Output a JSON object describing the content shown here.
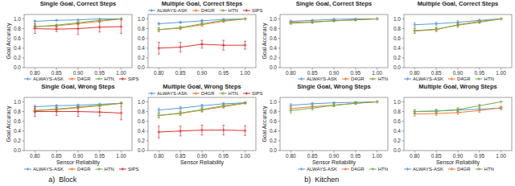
{
  "chart_data": [
    {
      "type": "line",
      "title": "Single Goal, Correct Steps",
      "ylabel": "Goal Accuracy",
      "x": [
        0.8,
        0.85,
        0.9,
        0.95,
        1.0
      ],
      "xlim": [
        0.775,
        1.025
      ],
      "xticks": [
        {
          "value": 0.8,
          "label": "0.80"
        },
        0.85,
        {
          "value": 0.9,
          "label": "0.90"
        },
        0.95,
        {
          "value": 1.0,
          "label": "1.00"
        }
      ],
      "ylim": [
        0.0,
        1.09
      ],
      "yticks": [
        {
          "value": 0.0,
          "label": "0.0"
        },
        0.2,
        0.4,
        0.6,
        0.8,
        {
          "value": 1.0,
          "label": "1.0"
        }
      ],
      "grid": false,
      "legend": "lower left",
      "marker": "plus",
      "series": [
        {
          "name": "ALWAYS-ASK",
          "color": "#5b9bd5",
          "values": [
            0.95,
            0.97,
            0.98,
            1.0,
            1.0
          ],
          "errors": [
            0.02,
            0.01,
            0.01,
            0.0,
            0.0
          ]
        },
        {
          "name": "D4GR",
          "color": "#ed7d31",
          "values": [
            0.84,
            0.86,
            0.9,
            0.95,
            1.0
          ],
          "errors": [
            0.03,
            0.02,
            0.02,
            0.01,
            0.0
          ]
        },
        {
          "name": "HTN",
          "color": "#70ad47",
          "values": [
            0.84,
            0.87,
            0.92,
            0.97,
            1.0
          ],
          "errors": [
            0.03,
            0.02,
            0.02,
            0.01,
            0.0
          ]
        },
        {
          "name": "SIPS",
          "color": "#e03030",
          "values": [
            0.8,
            0.79,
            0.8,
            0.83,
            0.84
          ],
          "errors": [
            0.1,
            0.05,
            0.12,
            0.1,
            0.14
          ]
        }
      ]
    },
    {
      "type": "line",
      "title": "Multiple Goal, Correct Steps",
      "x": [
        0.8,
        0.85,
        0.9,
        0.95,
        1.0
      ],
      "xlim": [
        0.775,
        1.025
      ],
      "xticks": [
        {
          "value": 0.8,
          "label": "0.80"
        },
        0.85,
        {
          "value": 0.9,
          "label": "0.90"
        },
        0.95,
        {
          "value": 1.0,
          "label": "1.00"
        }
      ],
      "ylim": [
        0.0,
        1.09
      ],
      "yticks": [
        {
          "value": 0.0,
          "label": "0.0"
        },
        0.2,
        0.4,
        0.6,
        0.8,
        {
          "value": 1.0,
          "label": "1.0"
        }
      ],
      "grid": false,
      "legend": "upper left",
      "marker": "plus",
      "series": [
        {
          "name": "ALWAYS-ASK",
          "color": "#5b9bd5",
          "values": [
            0.9,
            0.93,
            0.96,
            0.99,
            1.0
          ],
          "errors": [
            0.02,
            0.02,
            0.02,
            0.01,
            0.0
          ]
        },
        {
          "name": "D4GR",
          "color": "#ed7d31",
          "values": [
            0.78,
            0.81,
            0.88,
            0.95,
            1.0
          ],
          "errors": [
            0.04,
            0.03,
            0.03,
            0.02,
            0.0
          ]
        },
        {
          "name": "HTN",
          "color": "#70ad47",
          "values": [
            0.78,
            0.82,
            0.9,
            0.97,
            1.0
          ],
          "errors": [
            0.04,
            0.03,
            0.03,
            0.01,
            0.0
          ]
        },
        {
          "name": "SIPS",
          "color": "#e03030",
          "values": [
            0.4,
            0.42,
            0.48,
            0.46,
            0.46
          ],
          "errors": [
            0.12,
            0.1,
            0.08,
            0.1,
            0.08
          ]
        }
      ]
    },
    {
      "type": "line",
      "title": "Single Goal, Correct Steps",
      "ylabel": "Goal Accuracy",
      "x": [
        0.8,
        0.85,
        0.9,
        0.95,
        1.0
      ],
      "xlim": [
        0.775,
        1.025
      ],
      "xticks": [
        {
          "value": 0.8,
          "label": "0.80"
        },
        0.85,
        {
          "value": 0.9,
          "label": "0.90"
        },
        0.95,
        {
          "value": 1.0,
          "label": "1.00"
        }
      ],
      "ylim": [
        0.0,
        1.09
      ],
      "yticks": [
        {
          "value": 0.0,
          "label": "0.0"
        },
        0.2,
        0.4,
        0.6,
        0.8,
        {
          "value": 1.0,
          "label": "1.0"
        }
      ],
      "grid": false,
      "legend": "lower right",
      "marker": "plus",
      "series": [
        {
          "name": "ALWAYS-ASK",
          "color": "#5b9bd5",
          "values": [
            0.95,
            0.97,
            0.99,
            1.0,
            1.0
          ],
          "errors": [
            0.02,
            0.01,
            0.01,
            0.0,
            0.0
          ]
        },
        {
          "name": "D4GR",
          "color": "#ed7d31",
          "values": [
            0.93,
            0.94,
            0.96,
            0.98,
            1.0
          ],
          "errors": [
            0.02,
            0.02,
            0.01,
            0.01,
            0.0
          ]
        },
        {
          "name": "HTN",
          "color": "#70ad47",
          "values": [
            0.91,
            0.93,
            0.96,
            0.98,
            1.0
          ],
          "errors": [
            0.02,
            0.02,
            0.01,
            0.01,
            0.0
          ]
        }
      ]
    },
    {
      "type": "line",
      "title": "Multiple Goal, Correct Steps",
      "x": [
        0.8,
        0.85,
        0.9,
        0.95,
        1.0
      ],
      "xlim": [
        0.775,
        1.025
      ],
      "xticks": [
        {
          "value": 0.8,
          "label": "0.80"
        },
        0.85,
        {
          "value": 0.9,
          "label": "0.90"
        },
        0.95,
        {
          "value": 1.0,
          "label": "1.00"
        }
      ],
      "ylim": [
        0.0,
        1.09
      ],
      "yticks": [
        {
          "value": 0.0,
          "label": "0.0"
        },
        0.2,
        0.4,
        0.6,
        0.8,
        {
          "value": 1.0,
          "label": "1.0"
        }
      ],
      "grid": false,
      "legend": "lower left",
      "marker": "plus",
      "series": [
        {
          "name": "ALWAYS-ASK",
          "color": "#5b9bd5",
          "values": [
            0.88,
            0.9,
            0.93,
            0.97,
            1.0
          ],
          "errors": [
            0.04,
            0.03,
            0.03,
            0.02,
            0.0
          ]
        },
        {
          "name": "D4GR",
          "color": "#ed7d31",
          "values": [
            0.75,
            0.78,
            0.88,
            0.95,
            1.0
          ],
          "errors": [
            0.05,
            0.04,
            0.04,
            0.02,
            0.0
          ]
        },
        {
          "name": "HTN",
          "color": "#70ad47",
          "values": [
            0.76,
            0.79,
            0.87,
            0.93,
            1.0
          ],
          "errors": [
            0.05,
            0.04,
            0.04,
            0.02,
            0.0
          ]
        }
      ]
    },
    {
      "type": "line",
      "title": "Single Goal, Wrong Steps",
      "ylabel": "Goal Accuracy",
      "xlabel": "Sensor Reliability",
      "annotations": [
        "a)",
        "Block"
      ],
      "x": [
        0.8,
        0.85,
        0.9,
        0.95,
        1.0
      ],
      "xlim": [
        0.775,
        1.025
      ],
      "xticks": [
        {
          "value": 0.8,
          "label": "0.80"
        },
        0.85,
        {
          "value": 0.9,
          "label": "0.90"
        },
        0.95,
        {
          "value": 1.0,
          "label": "1.00"
        }
      ],
      "ylim": [
        0.0,
        1.09
      ],
      "yticks": [
        {
          "value": 0.0,
          "label": "0.0"
        },
        0.2,
        0.4,
        0.6,
        0.8,
        {
          "value": 1.0,
          "label": "1.0"
        }
      ],
      "grid": false,
      "legend": "lower left",
      "marker": "plus",
      "series": [
        {
          "name": "ALWAYS-ASK",
          "color": "#5b9bd5",
          "values": [
            0.9,
            0.92,
            0.93,
            0.95,
            0.97
          ],
          "errors": [
            0.03,
            0.02,
            0.02,
            0.01,
            0.01
          ]
        },
        {
          "name": "D4GR",
          "color": "#ed7d31",
          "values": [
            0.82,
            0.84,
            0.88,
            0.92,
            0.97
          ],
          "errors": [
            0.04,
            0.03,
            0.02,
            0.02,
            0.01
          ]
        },
        {
          "name": "HTN",
          "color": "#70ad47",
          "values": [
            0.82,
            0.85,
            0.89,
            0.93,
            0.97
          ],
          "errors": [
            0.04,
            0.03,
            0.02,
            0.02,
            0.01
          ]
        },
        {
          "name": "SIPS",
          "color": "#e03030",
          "values": [
            0.8,
            0.8,
            0.8,
            0.79,
            0.77
          ],
          "errors": [
            0.1,
            0.08,
            0.1,
            0.08,
            0.14
          ]
        }
      ]
    },
    {
      "type": "line",
      "title": "Multiple Goal, Wrong Steps",
      "xlabel": "Sensor Reliability",
      "x": [
        0.8,
        0.85,
        0.9,
        0.95,
        1.0
      ],
      "xlim": [
        0.775,
        1.025
      ],
      "xticks": [
        {
          "value": 0.8,
          "label": "0.80"
        },
        0.85,
        {
          "value": 0.9,
          "label": "0.90"
        },
        0.95,
        {
          "value": 1.0,
          "label": "1.00"
        }
      ],
      "ylim": [
        0.0,
        1.09
      ],
      "yticks": [
        {
          "value": 0.0,
          "label": "0.0"
        },
        0.2,
        0.4,
        0.6,
        0.8,
        {
          "value": 1.0,
          "label": "1.0"
        }
      ],
      "grid": false,
      "legend": "upper left",
      "marker": "plus",
      "series": [
        {
          "name": "ALWAYS-ASK",
          "color": "#5b9bd5",
          "values": [
            0.83,
            0.87,
            0.92,
            0.96,
            0.98
          ],
          "errors": [
            0.04,
            0.03,
            0.03,
            0.02,
            0.01
          ]
        },
        {
          "name": "D4GR",
          "color": "#ed7d31",
          "values": [
            0.72,
            0.76,
            0.83,
            0.9,
            0.97
          ],
          "errors": [
            0.05,
            0.04,
            0.04,
            0.03,
            0.01
          ]
        },
        {
          "name": "HTN",
          "color": "#70ad47",
          "values": [
            0.72,
            0.77,
            0.84,
            0.92,
            0.98
          ],
          "errors": [
            0.05,
            0.04,
            0.04,
            0.03,
            0.01
          ]
        },
        {
          "name": "SIPS",
          "color": "#e03030",
          "values": [
            0.38,
            0.4,
            0.42,
            0.42,
            0.41
          ],
          "errors": [
            0.12,
            0.1,
            0.1,
            0.1,
            0.1
          ]
        }
      ]
    },
    {
      "type": "line",
      "title": "Single Goal, Wrong Steps",
      "ylabel": "Goal Accuracy",
      "xlabel": "Sensor Reliability",
      "annotations": [
        "b)",
        "Kitchen"
      ],
      "x": [
        0.8,
        0.85,
        0.9,
        0.95,
        1.0
      ],
      "xlim": [
        0.775,
        1.025
      ],
      "xticks": [
        {
          "value": 0.8,
          "label": "0.80"
        },
        0.85,
        {
          "value": 0.9,
          "label": "0.90"
        },
        0.95,
        {
          "value": 1.0,
          "label": "1.00"
        }
      ],
      "ylim": [
        0.0,
        1.09
      ],
      "yticks": [
        {
          "value": 0.0,
          "label": "0.0"
        },
        0.2,
        0.4,
        0.6,
        0.8,
        {
          "value": 1.0,
          "label": "1.0"
        }
      ],
      "grid": false,
      "legend": "lower right",
      "marker": "plus",
      "series": [
        {
          "name": "ALWAYS-ASK",
          "color": "#5b9bd5",
          "values": [
            0.93,
            0.96,
            0.98,
            0.99,
            1.0
          ],
          "errors": [
            0.03,
            0.02,
            0.01,
            0.01,
            0.0
          ]
        },
        {
          "name": "D4GR",
          "color": "#ed7d31",
          "values": [
            0.86,
            0.9,
            0.93,
            0.97,
            1.0
          ],
          "errors": [
            0.04,
            0.03,
            0.03,
            0.02,
            0.0
          ]
        },
        {
          "name": "HTN",
          "color": "#70ad47",
          "values": [
            0.82,
            0.87,
            0.93,
            0.97,
            1.0
          ],
          "errors": [
            0.05,
            0.04,
            0.03,
            0.02,
            0.0
          ]
        }
      ]
    },
    {
      "type": "line",
      "title": "Multiple Goal, Wrong Steps",
      "xlabel": "Sensor Reliability",
      "x": [
        0.8,
        0.85,
        0.9,
        0.95,
        1.0
      ],
      "xlim": [
        0.775,
        1.025
      ],
      "xticks": [
        {
          "value": 0.8,
          "label": "0.80"
        },
        0.85,
        {
          "value": 0.9,
          "label": "0.90"
        },
        0.95,
        {
          "value": 1.0,
          "label": "1.00"
        }
      ],
      "ylim": [
        0.0,
        1.09
      ],
      "yticks": [
        {
          "value": 0.0,
          "label": "0.0"
        },
        0.2,
        0.4,
        0.6,
        0.8,
        {
          "value": 1.0,
          "label": "1.0"
        }
      ],
      "grid": false,
      "legend": "lower left",
      "marker": "plus",
      "series": [
        {
          "name": "ALWAYS-ASK",
          "color": "#5b9bd5",
          "values": [
            0.8,
            0.81,
            0.83,
            0.85,
            0.87
          ],
          "errors": [
            0.03,
            0.03,
            0.03,
            0.03,
            0.03
          ]
        },
        {
          "name": "D4GR",
          "color": "#ed7d31",
          "values": [
            0.75,
            0.76,
            0.78,
            0.82,
            0.88
          ],
          "errors": [
            0.04,
            0.04,
            0.04,
            0.04,
            0.03
          ]
        },
        {
          "name": "HTN",
          "color": "#70ad47",
          "values": [
            0.8,
            0.81,
            0.84,
            0.92,
            1.0
          ],
          "errors": [
            0.04,
            0.04,
            0.04,
            0.03,
            0.0
          ]
        }
      ]
    }
  ]
}
